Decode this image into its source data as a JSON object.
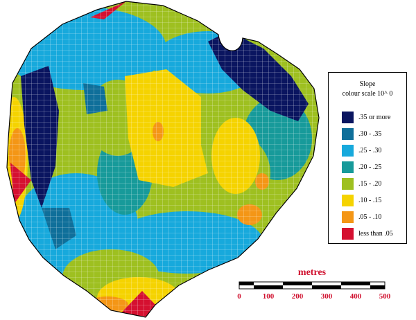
{
  "legend": {
    "title_line1": "Slope",
    "title_line2": "colour scale 10^ 0",
    "items": [
      {
        "label": ".35 or more",
        "color": "#0a1560"
      },
      {
        "label": ".30 -   .35",
        "color": "#0f6f9a"
      },
      {
        "label": ".25 -   .30",
        "color": "#17a9dc"
      },
      {
        "label": ".20 -   .25",
        "color": "#179a9a"
      },
      {
        "label": ".15 -   .20",
        "color": "#9ec020"
      },
      {
        "label": ".10 -   .15",
        "color": "#f5d300"
      },
      {
        "label": ".05 -   .10",
        "color": "#f49616"
      },
      {
        "label": "less than   .05",
        "color": "#d51030"
      }
    ]
  },
  "scale_bar": {
    "title": "metres",
    "ticks": [
      "0",
      "100",
      "200",
      "300",
      "400",
      "500"
    ],
    "text_color": "#d0102e"
  }
}
